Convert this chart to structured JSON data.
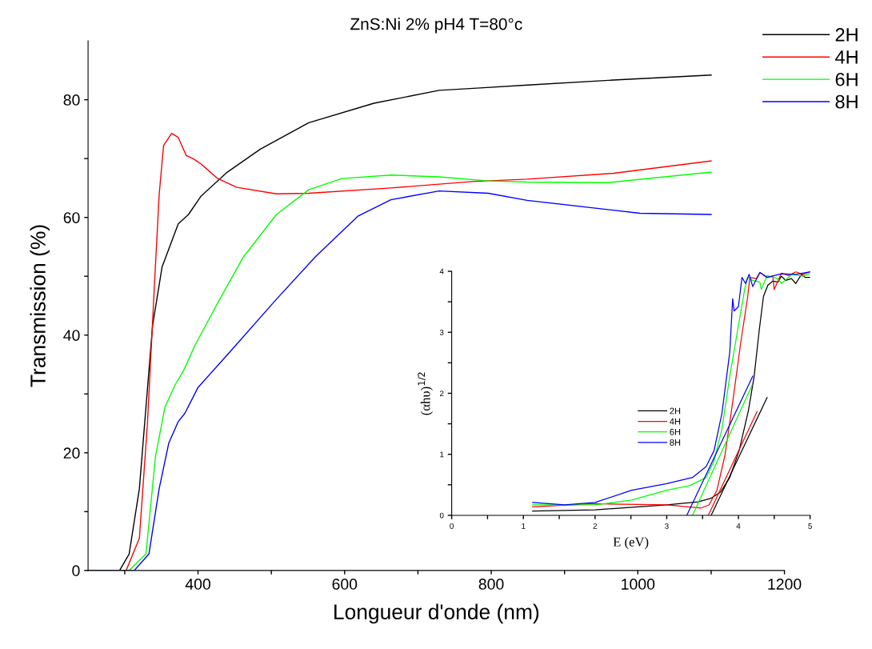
{
  "chart_data": [
    {
      "type": "line",
      "title": "ZnS:Ni 2% pH4 T=80°c",
      "xlabel": "Longueur d'onde (nm)",
      "ylabel": "Transmission (%)",
      "xlim": [
        250,
        1200
      ],
      "ylim": [
        0,
        90
      ],
      "xticks": [
        {
          "value": 300,
          "label": null
        },
        400,
        {
          "value": 500,
          "label": null
        },
        600,
        {
          "value": 700,
          "label": null
        },
        800,
        {
          "value": 900,
          "label": null
        },
        1000,
        {
          "value": 1100,
          "label": null
        },
        1200
      ],
      "yticks": [
        0,
        {
          "value": 10,
          "label": null
        },
        20,
        {
          "value": 30,
          "label": null
        },
        40,
        {
          "value": 50,
          "label": null
        },
        60,
        {
          "value": 70,
          "label": null
        },
        80
      ],
      "legend": "top right",
      "grid": false,
      "series": [
        {
          "name": "2H",
          "color": "#000000",
          "x": [
            250,
            293,
            306,
            320,
            329,
            338,
            351,
            373,
            387,
            404,
            440,
            485,
            551,
            640,
            729,
            785,
            850,
            960,
            1100
          ],
          "values": [
            0,
            0,
            2.8,
            13.9,
            27.8,
            41.6,
            51.6,
            58.9,
            60.5,
            63.6,
            67.7,
            71.6,
            76.1,
            79.4,
            81.6,
            82.0,
            82.5,
            83.3,
            84.2
          ]
        },
        {
          "name": "4H",
          "color": "#ff0000",
          "x": [
            250,
            302,
            320,
            331,
            340,
            347,
            353,
            364,
            373,
            384,
            393,
            404,
            427,
            453,
            507,
            551,
            663,
            774,
            849,
            967,
            1100
          ],
          "values": [
            0,
            0,
            5.5,
            25,
            47.2,
            63.9,
            72.2,
            74.3,
            73.6,
            70.5,
            70.0,
            69.1,
            66.6,
            65.1,
            64.0,
            64.1,
            65.0,
            66.1,
            66.5,
            67.5,
            69.6
          ]
        },
        {
          "name": "6H",
          "color": "#00ff00",
          "x": [
            250,
            306,
            329,
            342,
            355,
            369,
            380,
            396,
            427,
            462,
            507,
            551,
            596,
            663,
            729,
            796,
            849,
            958,
            1100
          ],
          "values": [
            0,
            0,
            2.8,
            19.4,
            27.8,
            31.6,
            33.9,
            38.3,
            45.5,
            53.3,
            60.5,
            64.7,
            66.6,
            67.2,
            66.9,
            66.2,
            66.0,
            65.9,
            67.7
          ]
        },
        {
          "name": "8H",
          "color": "#0000ff",
          "x": [
            250,
            313,
            333,
            347,
            360,
            373,
            382,
            400,
            444,
            507,
            560,
            618,
            663,
            729,
            796,
            849,
            1003,
            1100
          ],
          "values": [
            0,
            0,
            2.8,
            13.9,
            21.6,
            25.3,
            26.7,
            31.1,
            37.2,
            46.1,
            53.3,
            60.2,
            63.0,
            64.5,
            64.1,
            62.9,
            60.7,
            60.5
          ]
        }
      ]
    },
    {
      "type": "line",
      "xlabel": "E (eV)",
      "ylabel": "(αhυ)$^{1/2}$",
      "xlim": [
        0,
        5
      ],
      "ylim": [
        0,
        4
      ],
      "xticks": [
        0,
        {
          "value": 0.5,
          "label": null
        },
        1,
        {
          "value": 1.5,
          "label": null
        },
        2,
        {
          "value": 2.5,
          "label": null
        },
        3,
        {
          "value": 3.5,
          "label": null
        },
        4,
        {
          "value": 4.5,
          "label": null
        },
        5
      ],
      "yticks": [
        0,
        {
          "value": 0.5,
          "label": null
        },
        1,
        {
          "value": 1.5,
          "label": null
        },
        2,
        {
          "value": 2.5,
          "label": null
        },
        3,
        {
          "value": 3.5,
          "label": null
        },
        4
      ],
      "legend": "center",
      "grid": false,
      "series": [
        {
          "name": "2H",
          "color": "#000000",
          "x": [
            1.13,
            2.0,
            3.0,
            3.44,
            3.62,
            3.75,
            3.88,
            4.01,
            4.14,
            4.22,
            4.29,
            4.35,
            4.41,
            4.48,
            4.55,
            4.6,
            4.66,
            4.74,
            4.8,
            4.88,
            4.93,
            5.0
          ],
          "values": [
            0.07,
            0.09,
            0.17,
            0.22,
            0.28,
            0.38,
            0.62,
            1.06,
            1.72,
            2.28,
            3.03,
            3.59,
            3.77,
            3.84,
            3.82,
            3.92,
            3.85,
            3.88,
            3.8,
            3.95,
            3.9,
            3.9
          ]
        },
        {
          "name": "4H",
          "color": "#ff0000",
          "x": [
            1.13,
            2.0,
            3.0,
            3.48,
            3.59,
            3.7,
            3.81,
            3.92,
            4.03,
            4.13,
            4.16,
            4.25,
            4.3,
            4.4,
            4.48,
            4.5,
            4.6,
            4.7,
            4.8,
            4.9,
            5.0
          ],
          "values": [
            0.14,
            0.19,
            0.17,
            0.12,
            0.17,
            0.41,
            0.97,
            1.85,
            2.81,
            3.59,
            3.9,
            3.88,
            3.98,
            3.9,
            3.92,
            3.7,
            3.97,
            3.93,
            3.99,
            3.95,
            3.99
          ]
        },
        {
          "name": "6H",
          "color": "#00ff00",
          "x": [
            1.13,
            2.0,
            2.51,
            3.0,
            3.33,
            3.55,
            3.66,
            3.77,
            3.88,
            4.0,
            4.09,
            4.13,
            4.2,
            4.3,
            4.32,
            4.4,
            4.55,
            4.6,
            4.75,
            4.9,
            5.0
          ],
          "values": [
            0.17,
            0.17,
            0.25,
            0.41,
            0.49,
            0.62,
            0.89,
            1.41,
            2.28,
            3.11,
            3.72,
            3.9,
            3.85,
            3.82,
            3.7,
            3.93,
            3.88,
            3.8,
            3.95,
            3.92,
            3.96
          ]
        },
        {
          "name": "8H",
          "color": "#0000ff",
          "x": [
            1.13,
            1.58,
            2.0,
            2.51,
            3.0,
            3.36,
            3.55,
            3.66,
            3.77,
            3.88,
            3.92,
            3.94,
            4.0,
            4.05,
            4.1,
            4.15,
            4.2,
            4.3,
            4.4,
            4.6,
            4.8,
            5.0
          ],
          "values": [
            0.21,
            0.17,
            0.21,
            0.41,
            0.52,
            0.62,
            0.8,
            1.06,
            1.67,
            2.68,
            3.55,
            3.35,
            3.42,
            3.9,
            3.8,
            3.95,
            3.75,
            3.98,
            3.9,
            3.96,
            3.95,
            3.99
          ]
        },
        {
          "color": "#000000",
          "x": [
            3.62,
            4.4
          ],
          "values": [
            0,
            1.93
          ]
        },
        {
          "color": "#ff0000",
          "x": [
            3.58,
            4.26
          ],
          "values": [
            0,
            1.7
          ]
        },
        {
          "color": "#00ff00",
          "x": [
            3.36,
            4.19
          ],
          "values": [
            0,
            2.13
          ]
        },
        {
          "color": "#0000ff",
          "x": [
            3.28,
            4.2
          ],
          "values": [
            0,
            2.28
          ]
        }
      ]
    }
  ]
}
